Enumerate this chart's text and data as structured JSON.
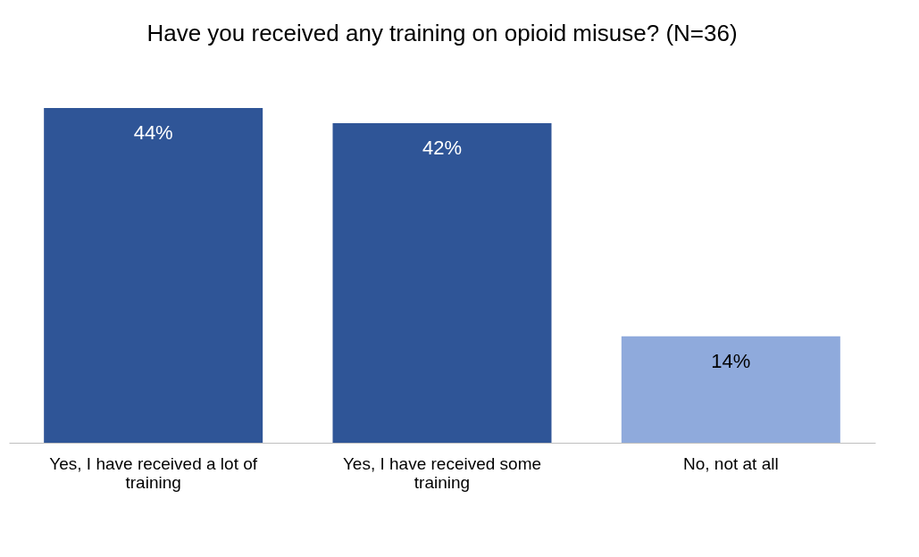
{
  "chart_data": {
    "type": "bar",
    "title": "Have you received any training on opioid misuse? (N=36)",
    "categories": [
      "Yes, I have received a lot of training",
      "Yes, I have received some training",
      "No, not at all"
    ],
    "values": [
      44,
      42,
      14
    ],
    "colors": [
      "#2f5597",
      "#2f5597",
      "#8faadc"
    ],
    "value_labels": [
      "44%",
      "42%",
      "14%"
    ],
    "grid": false
  }
}
